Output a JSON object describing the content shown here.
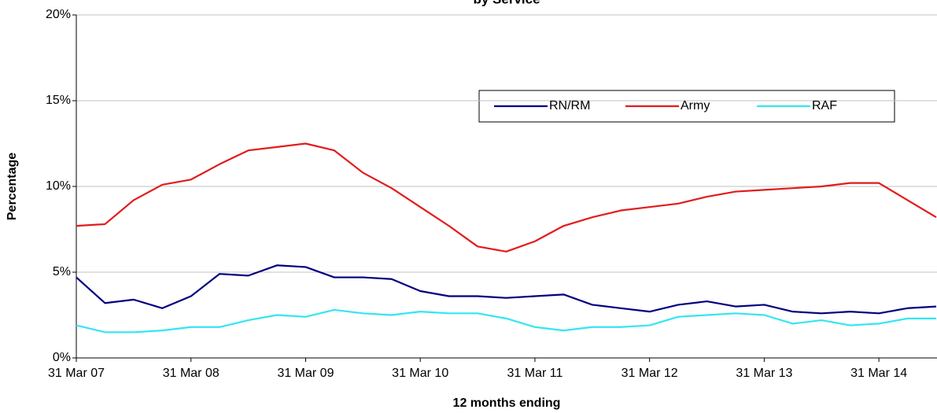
{
  "chart_data": {
    "type": "line",
    "title": "by Service",
    "x_label": "12 months ending",
    "y_label": "Percentage",
    "categories": [
      "31 Mar 07",
      null,
      null,
      null,
      "31 Mar 08",
      null,
      null,
      null,
      "31 Mar 09",
      null,
      null,
      null,
      "31 Mar 10",
      null,
      null,
      null,
      "31 Mar 11",
      null,
      null,
      null,
      "31 Mar 12",
      null,
      null,
      null,
      "31 Mar 13",
      null,
      null,
      null,
      "31 Mar 14",
      null,
      null
    ],
    "series": [
      {
        "name": "RN/RM",
        "color": "#000080",
        "values": [
          4.7,
          3.2,
          3.4,
          2.9,
          3.6,
          4.9,
          4.8,
          5.4,
          5.3,
          4.7,
          4.7,
          4.6,
          3.9,
          3.6,
          3.6,
          3.5,
          3.6,
          3.7,
          3.1,
          2.9,
          2.7,
          3.1,
          3.3,
          3.0,
          3.1,
          2.7,
          2.6,
          2.7,
          2.6,
          2.9,
          3.0
        ]
      },
      {
        "name": "Army",
        "color": "#e31a1c",
        "values": [
          7.7,
          7.8,
          9.2,
          10.1,
          10.4,
          11.3,
          12.1,
          12.3,
          12.5,
          12.1,
          10.8,
          9.9,
          8.8,
          7.7,
          6.5,
          6.2,
          6.8,
          7.7,
          8.2,
          8.6,
          8.8,
          9.0,
          9.4,
          9.7,
          9.8,
          9.9,
          10.0,
          10.2,
          10.2,
          9.2,
          8.2
        ]
      },
      {
        "name": "RAF",
        "color": "#33e6f0",
        "values": [
          1.9,
          1.5,
          1.5,
          1.6,
          1.8,
          1.8,
          2.2,
          2.5,
          2.4,
          2.8,
          2.6,
          2.5,
          2.7,
          2.6,
          2.6,
          2.3,
          1.8,
          1.6,
          1.8,
          1.8,
          1.9,
          2.4,
          2.5,
          2.6,
          2.5,
          2.0,
          2.2,
          1.9,
          2.0,
          2.3,
          2.3
        ]
      }
    ],
    "ylim": [
      0,
      20
    ],
    "yticks": [
      {
        "value": 0,
        "label": "0%"
      },
      {
        "value": 5,
        "label": "5%"
      },
      {
        "value": 10,
        "label": "10%"
      },
      {
        "value": 15,
        "label": "15%"
      },
      {
        "value": 20,
        "label": "20%"
      }
    ],
    "grid": true
  }
}
